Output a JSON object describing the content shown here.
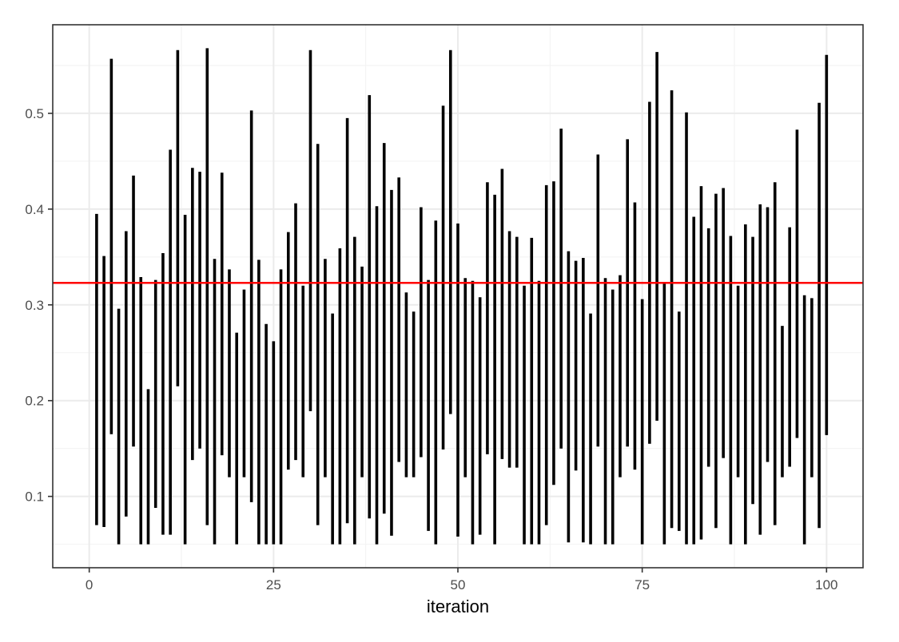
{
  "chart_data": {
    "type": "interval",
    "title": "",
    "xlabel": "iteration",
    "ylabel": "",
    "xlim": [
      -4.95,
      104.95
    ],
    "ylim": [
      0.0255,
      0.5925
    ],
    "x_ticks": [
      0,
      25,
      50,
      75,
      100
    ],
    "y_ticks": [
      0.1,
      0.2,
      0.3,
      0.4,
      0.5
    ],
    "x_tick_labels": [
      "0",
      "25",
      "50",
      "75",
      "100"
    ],
    "y_tick_labels": [
      "0.1",
      "0.2",
      "0.3",
      "0.4",
      "0.5"
    ],
    "grid": true,
    "legend": "none",
    "reference_line": {
      "y": 0.323,
      "color": "#ff0000"
    },
    "segment_color": "#000000",
    "x": [
      1,
      2,
      3,
      4,
      5,
      6,
      7,
      8,
      9,
      10,
      11,
      12,
      13,
      14,
      15,
      16,
      17,
      18,
      19,
      20,
      21,
      22,
      23,
      24,
      25,
      26,
      27,
      28,
      29,
      30,
      31,
      32,
      33,
      34,
      35,
      36,
      37,
      38,
      39,
      40,
      41,
      42,
      43,
      44,
      45,
      46,
      47,
      48,
      49,
      50,
      51,
      52,
      53,
      54,
      55,
      56,
      57,
      58,
      59,
      60,
      61,
      62,
      63,
      64,
      65,
      66,
      67,
      68,
      69,
      70,
      71,
      72,
      73,
      74,
      75,
      76,
      77,
      78,
      79,
      80,
      81,
      82,
      83,
      84,
      85,
      86,
      87,
      88,
      89,
      90,
      91,
      92,
      93,
      94,
      95,
      96,
      97,
      98,
      99,
      100
    ],
    "lower": [
      0.07,
      0.068,
      0.165,
      0.05,
      0.079,
      0.152,
      0.05,
      0.05,
      0.088,
      0.06,
      0.06,
      0.215,
      0.05,
      0.138,
      0.15,
      0.07,
      0.05,
      0.143,
      0.12,
      0.05,
      0.12,
      0.094,
      0.05,
      0.05,
      0.05,
      0.05,
      0.128,
      0.138,
      0.12,
      0.189,
      0.07,
      0.12,
      0.05,
      0.05,
      0.072,
      0.05,
      0.12,
      0.077,
      0.05,
      0.082,
      0.059,
      0.136,
      0.12,
      0.12,
      0.141,
      0.064,
      0.05,
      0.149,
      0.186,
      0.058,
      0.12,
      0.05,
      0.06,
      0.144,
      0.05,
      0.139,
      0.13,
      0.13,
      0.05,
      0.05,
      0.05,
      0.07,
      0.112,
      0.15,
      0.052,
      0.127,
      0.052,
      0.05,
      0.152,
      0.05,
      0.05,
      0.12,
      0.152,
      0.128,
      0.05,
      0.155,
      0.179,
      0.05,
      0.067,
      0.064,
      0.05,
      0.05,
      0.055,
      0.131,
      0.067,
      0.14,
      0.05,
      0.12,
      0.05,
      0.092,
      0.06,
      0.136,
      0.07,
      0.12,
      0.131,
      0.161,
      0.05,
      0.12,
      0.067,
      0.164
    ],
    "upper": [
      0.395,
      0.351,
      0.557,
      0.296,
      0.377,
      0.435,
      0.329,
      0.212,
      0.326,
      0.354,
      0.462,
      0.566,
      0.394,
      0.443,
      0.439,
      0.568,
      0.348,
      0.438,
      0.337,
      0.271,
      0.316,
      0.503,
      0.347,
      0.28,
      0.262,
      0.337,
      0.376,
      0.406,
      0.32,
      0.566,
      0.468,
      0.348,
      0.291,
      0.359,
      0.495,
      0.371,
      0.34,
      0.519,
      0.403,
      0.469,
      0.42,
      0.433,
      0.313,
      0.293,
      0.402,
      0.326,
      0.388,
      0.508,
      0.566,
      0.385,
      0.328,
      0.325,
      0.308,
      0.428,
      0.415,
      0.442,
      0.377,
      0.371,
      0.32,
      0.37,
      0.325,
      0.425,
      0.429,
      0.484,
      0.356,
      0.346,
      0.349,
      0.291,
      0.457,
      0.328,
      0.316,
      0.331,
      0.473,
      0.407,
      0.306,
      0.512,
      0.564,
      0.323,
      0.524,
      0.293,
      0.501,
      0.392,
      0.424,
      0.38,
      0.416,
      0.422,
      0.372,
      0.32,
      0.384,
      0.371,
      0.405,
      0.402,
      0.428,
      0.278,
      0.381,
      0.483,
      0.31,
      0.307,
      0.511,
      0.561
    ]
  }
}
